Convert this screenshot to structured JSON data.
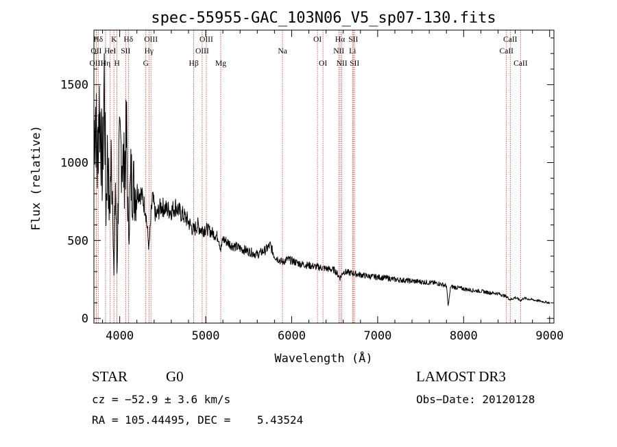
{
  "chart_data": {
    "type": "line",
    "title": "spec-55955-GAC_103N06_V5_sp07-130.fits",
    "xlabel": "Wavelength (Å)",
    "ylabel": "Flux (relative)",
    "xlim": [
      3700,
      9050
    ],
    "ylim": [
      -30,
      1850
    ],
    "xticks": [
      4000,
      5000,
      6000,
      7000,
      8000,
      9000
    ],
    "yticks": [
      0,
      500,
      1000,
      1500
    ],
    "series": [
      {
        "name": "flux",
        "x": [
          3700,
          3720,
          3740,
          3760,
          3780,
          3800,
          3820,
          3840,
          3860,
          3880,
          3900,
          3920,
          3933,
          3950,
          3968,
          3990,
          4020,
          4050,
          4080,
          4101,
          4130,
          4160,
          4200,
          4250,
          4300,
          4340,
          4380,
          4420,
          4480,
          4550,
          4600,
          4650,
          4700,
          4760,
          4800,
          4861,
          4900,
          4950,
          5000,
          5050,
          5100,
          5150,
          5175,
          5200,
          5300,
          5400,
          5500,
          5600,
          5700,
          5750,
          5800,
          5890,
          5950,
          6000,
          6100,
          6200,
          6300,
          6400,
          6500,
          6563,
          6600,
          6700,
          6800,
          6900,
          7000,
          7100,
          7200,
          7300,
          7400,
          7500,
          7600,
          7700,
          7800,
          7820,
          7850,
          7900,
          8000,
          8100,
          8200,
          8300,
          8400,
          8498,
          8542,
          8600,
          8662,
          8700,
          8800,
          8900,
          9000
        ],
        "values": [
          1200,
          1350,
          950,
          1400,
          1200,
          900,
          1550,
          700,
          1100,
          650,
          1000,
          800,
          250,
          900,
          300,
          1000,
          1100,
          950,
          1150,
          550,
          900,
          850,
          820,
          800,
          700,
          450,
          780,
          650,
          720,
          700,
          690,
          720,
          680,
          650,
          620,
          560,
          600,
          570,
          580,
          560,
          540,
          520,
          440,
          510,
          470,
          450,
          430,
          410,
          440,
          470,
          400,
          360,
          380,
          370,
          350,
          340,
          330,
          320,
          310,
          260,
          300,
          290,
          280,
          270,
          265,
          260,
          250,
          245,
          240,
          235,
          230,
          225,
          210,
          80,
          205,
          200,
          190,
          180,
          175,
          165,
          160,
          140,
          120,
          135,
          115,
          130,
          120,
          110,
          100
        ]
      }
    ],
    "lines": [
      {
        "label": "Hδ",
        "wave": 3750,
        "row": 0
      },
      {
        "label": "K",
        "wave": 3933,
        "row": 0
      },
      {
        "label": "Hδ",
        "wave": 4101,
        "row": 0
      },
      {
        "label": "OIII",
        "wave": 4363,
        "row": 0
      },
      {
        "label": "OIII",
        "wave": 5007,
        "row": 0
      },
      {
        "label": "OI",
        "wave": 6300,
        "row": 0
      },
      {
        "label": "Hα",
        "wave": 6563,
        "row": 0
      },
      {
        "label": "SII",
        "wave": 6716,
        "row": 0
      },
      {
        "label": "CaII",
        "wave": 8542,
        "row": 0
      },
      {
        "label": "OII",
        "wave": 3727,
        "row": 1
      },
      {
        "label": "HeI",
        "wave": 3889,
        "row": 1
      },
      {
        "label": "SII",
        "wave": 4069,
        "row": 1
      },
      {
        "label": "Hγ",
        "wave": 4340,
        "row": 1
      },
      {
        "label": "OIII",
        "wave": 4959,
        "row": 1
      },
      {
        "label": "Na",
        "wave": 5893,
        "row": 1
      },
      {
        "label": "NII",
        "wave": 6548,
        "row": 1
      },
      {
        "label": "Li",
        "wave": 6708,
        "row": 1
      },
      {
        "label": "CaII",
        "wave": 8498,
        "row": 1
      },
      {
        "label": "OIII",
        "wave": 3727,
        "row": 2
      },
      {
        "label": "Hη",
        "wave": 3835,
        "row": 2
      },
      {
        "label": "H",
        "wave": 3968,
        "row": 2
      },
      {
        "label": "G",
        "wave": 4304,
        "row": 2
      },
      {
        "label": "Hβ",
        "wave": 4861,
        "row": 2
      },
      {
        "label": "Mg",
        "wave": 5175,
        "row": 2
      },
      {
        "label": "OI",
        "wave": 6364,
        "row": 2
      },
      {
        "label": "NII",
        "wave": 6583,
        "row": 2
      },
      {
        "label": "SII",
        "wave": 6731,
        "row": 2
      },
      {
        "label": "CaII",
        "wave": 8662,
        "row": 2
      }
    ]
  },
  "info": {
    "class_label": "STAR",
    "subclass_label": "G0",
    "survey": "LAMOST DR3",
    "redshift": "cz = −52.9 ± 3.6 km/s",
    "obs_date": "Obs−Date: 20120128",
    "coords": "RA = 105.44495, DEC =    5.43524"
  },
  "colors": {
    "line_marker": "#c0392b",
    "spectrum": "#000000",
    "axes": "#000000"
  }
}
